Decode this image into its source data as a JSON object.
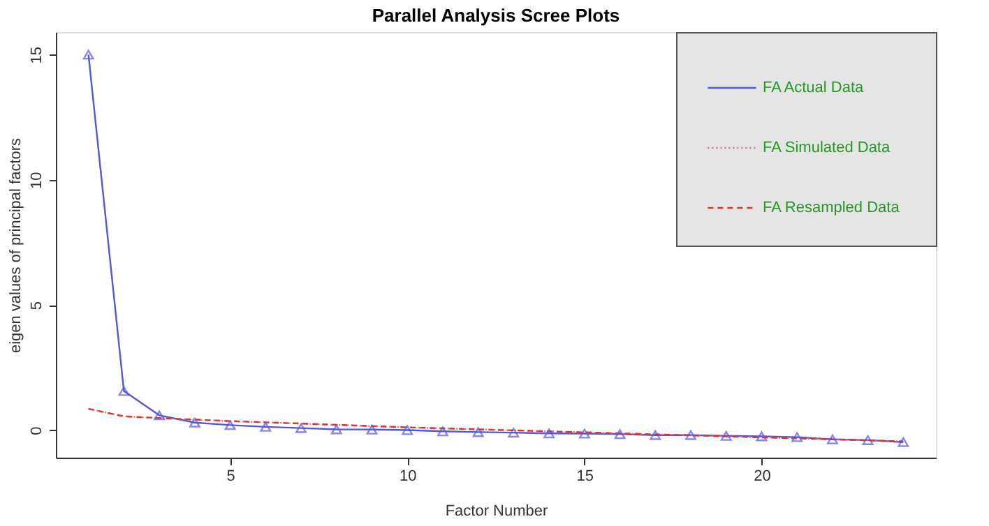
{
  "chart_data": {
    "type": "line",
    "title": "Parallel Analysis Scree Plots",
    "xlabel": "Factor Number",
    "ylabel": "eigen values of principal factors",
    "x": [
      1,
      2,
      3,
      4,
      5,
      6,
      7,
      8,
      9,
      10,
      11,
      12,
      13,
      14,
      15,
      16,
      17,
      18,
      19,
      20,
      21,
      22,
      23,
      24
    ],
    "series": [
      {
        "name": "FA  Actual Data",
        "color": "#5555dd",
        "line_style": "solid",
        "marker": "triangle",
        "values": [
          15,
          1.56,
          0.59,
          0.3,
          0.2,
          0.13,
          0.08,
          0.03,
          0.02,
          0,
          -0.05,
          -0.08,
          -0.1,
          -0.13,
          -0.14,
          -0.16,
          -0.2,
          -0.2,
          -0.23,
          -0.25,
          -0.28,
          -0.37,
          -0.4,
          -0.48
        ]
      },
      {
        "name": "FA  Simulated Data",
        "color": "#e07070",
        "line_style": "dotted",
        "marker": "none",
        "values": [
          0.85,
          0.55,
          0.48,
          0.42,
          0.36,
          0.31,
          0.26,
          0.21,
          0.16,
          0.11,
          0.07,
          0.03,
          -0.01,
          -0.05,
          -0.09,
          -0.13,
          -0.17,
          -0.21,
          -0.25,
          -0.29,
          -0.33,
          -0.37,
          -0.41,
          -0.45
        ]
      },
      {
        "name": "FA  Resampled Data",
        "color": "#dd3333",
        "line_style": "dashed",
        "marker": "none",
        "values": [
          0.85,
          0.55,
          0.48,
          0.42,
          0.36,
          0.31,
          0.26,
          0.21,
          0.16,
          0.11,
          0.07,
          0.03,
          -0.01,
          -0.05,
          -0.09,
          -0.13,
          -0.17,
          -0.21,
          -0.25,
          -0.29,
          -0.33,
          -0.37,
          -0.41,
          -0.45
        ]
      }
    ],
    "xlim": [
      0.08,
      24.92
    ],
    "ylim": [
      -1.1,
      15.9
    ],
    "xticks": [
      5,
      10,
      15,
      20
    ],
    "yticks": [
      0,
      5,
      10,
      15
    ],
    "grid": false,
    "legend": "top right"
  }
}
